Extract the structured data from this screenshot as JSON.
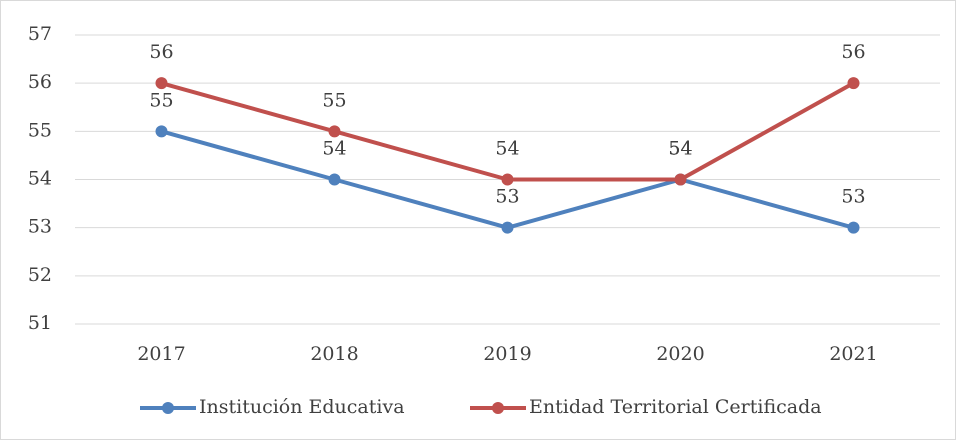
{
  "chart_data": {
    "type": "line",
    "categories": [
      "2017",
      "2018",
      "2019",
      "2020",
      "2021"
    ],
    "series": [
      {
        "name": "Institución Educativa",
        "color": "#4f81bd",
        "values": [
          55,
          54,
          53,
          54,
          53
        ]
      },
      {
        "name": "Entidad Territorial Certificada",
        "color": "#c0504d",
        "values": [
          56,
          55,
          54,
          54,
          56
        ]
      }
    ],
    "ylim": [
      51,
      57
    ],
    "yticks": [
      51,
      52,
      53,
      54,
      55,
      56,
      57
    ],
    "grid": true,
    "legend": "bottom"
  }
}
